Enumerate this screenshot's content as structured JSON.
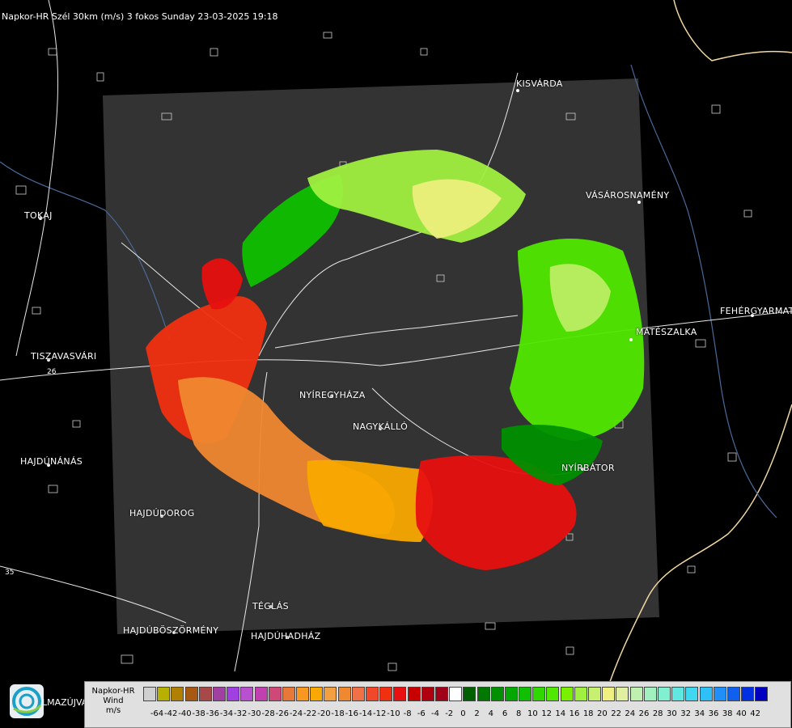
{
  "title": "Napkor-HR Szél 30km (m/s) 3 fokos Sunday 23-03-2025 19:18",
  "cities": [
    {
      "name": "KISVÁRDA",
      "id": "kisvarda"
    },
    {
      "name": "VÁSÁROSNAMÉNY",
      "id": "vasarosnameny"
    },
    {
      "name": "TOKAJ",
      "id": "tokaj"
    },
    {
      "name": "FEHÉRGYARMAT",
      "id": "fehergyarmat"
    },
    {
      "name": "MÁTÉSZALKA",
      "id": "mateszalka"
    },
    {
      "name": "TISZAVASVÁRI",
      "id": "tiszavasvari"
    },
    {
      "name": "NYÍREGYHÁZA",
      "id": "nyiregyhaza"
    },
    {
      "name": "NAGYKÁLLÓ",
      "id": "nagykallo"
    },
    {
      "name": "HAJDÚNÁNÁS",
      "id": "hajdunanas"
    },
    {
      "name": "NYÍRBÁTOR",
      "id": "nyirbator"
    },
    {
      "name": "HAJDÚDOROG",
      "id": "hajdudorog"
    },
    {
      "name": "TÉGLÁS",
      "id": "teglas"
    },
    {
      "name": "HAJDÚBÖSZÖRMÉNY",
      "id": "hajduboszormeny"
    },
    {
      "name": "HAJDÚHADHÁZ",
      "id": "hajduhadhaz"
    }
  ],
  "road_numbers": [
    "26",
    "35"
  ],
  "logo_text": "LMAZÚJVÁR",
  "legend": {
    "brand": "Napkor-HR",
    "label": "Wind",
    "unit": "m/s",
    "swatch_colors": [
      "#d0d0d0",
      "#b8b000",
      "#b08000",
      "#a85810",
      "#a84848",
      "#a040a0",
      "#a040e0",
      "#b850d0",
      "#c040b0",
      "#d04878",
      "#e87838",
      "#f89820",
      "#f8a800",
      "#f0a040",
      "#f08830",
      "#f07048",
      "#f04828",
      "#f03010",
      "#e81010",
      "#c80000",
      "#b00010",
      "#a00018",
      "#ffffff",
      "#006000",
      "#007800",
      "#009000",
      "#00a800",
      "#10c000",
      "#30d800",
      "#50e800",
      "#78f000",
      "#a0f040",
      "#c8f070",
      "#f0f080",
      "#e0f0a0",
      "#c0f0b0",
      "#a0f0c0",
      "#80f0d0",
      "#60e8e0",
      "#40d8f0",
      "#30c0f8",
      "#2090f8",
      "#1060f0",
      "#0030e0",
      "#0000c0"
    ],
    "ticks": [
      "-64",
      "-42",
      "-40",
      "-38",
      "-36",
      "-34",
      "-32",
      "-30",
      "-28",
      "-26",
      "-24",
      "-22",
      "-20",
      "-18",
      "-16",
      "-14",
      "-12",
      "-10",
      "-8",
      "-6",
      "-4",
      "-2",
      "0",
      "2",
      "4",
      "6",
      "8",
      "10",
      "12",
      "14",
      "16",
      "18",
      "20",
      "22",
      "24",
      "26",
      "28",
      "30",
      "32",
      "34",
      "36",
      "38",
      "40",
      "42"
    ]
  }
}
